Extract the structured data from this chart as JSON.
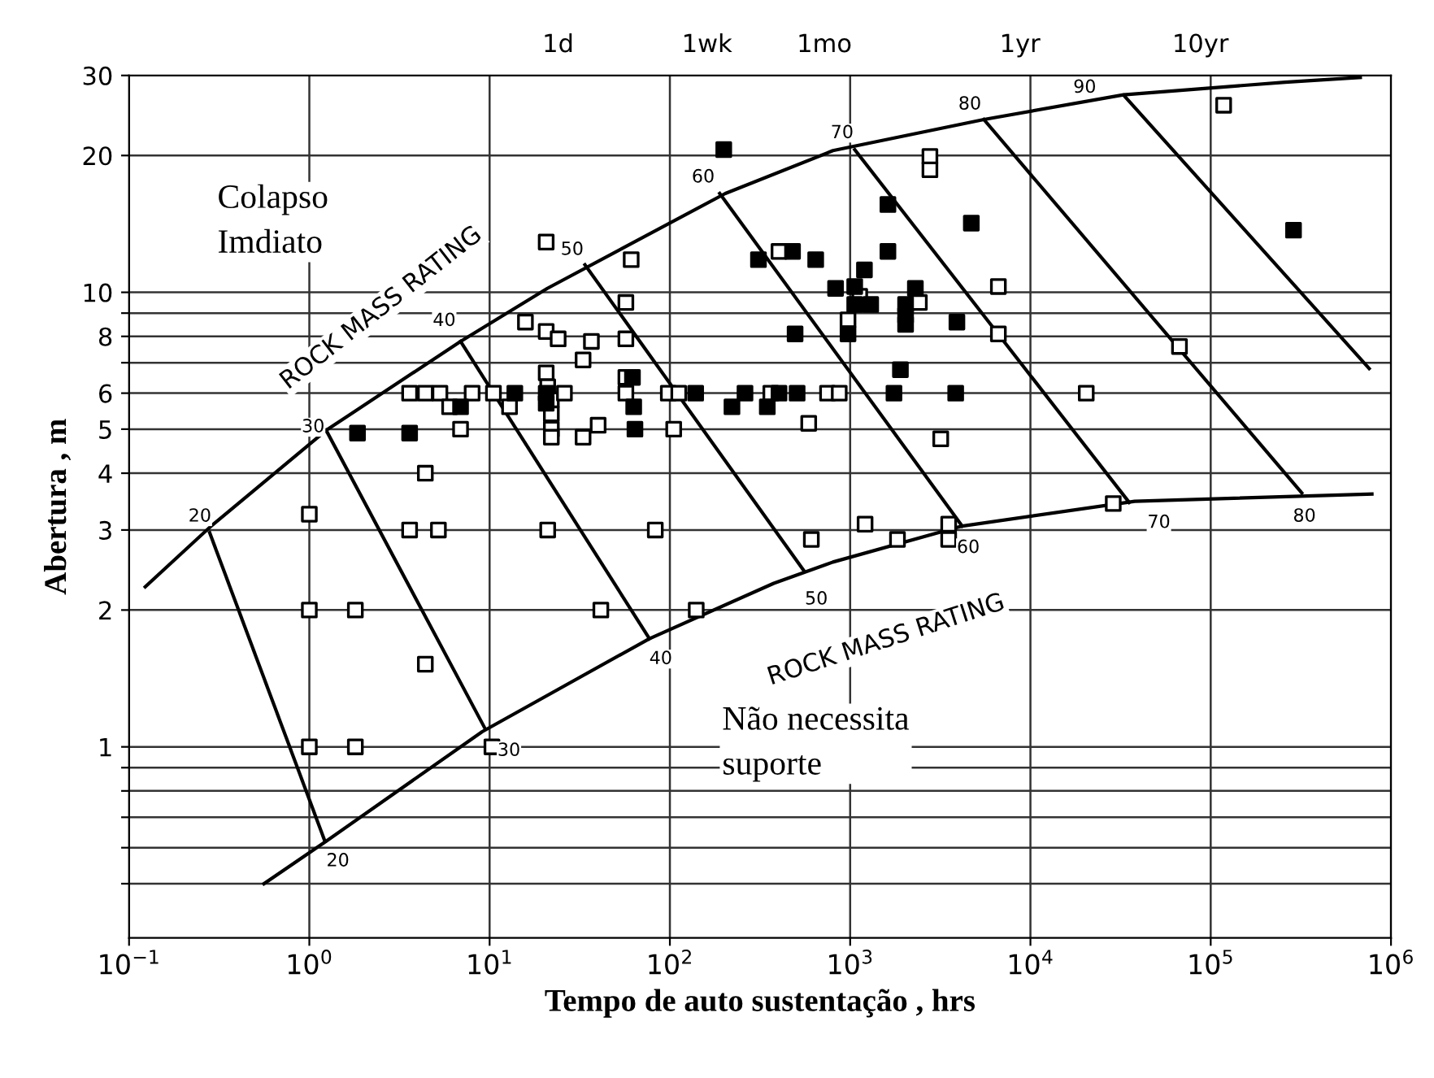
{
  "chart_data": {
    "type": "scatter",
    "xlabel": "Tempo de auto sustentação , hrs",
    "ylabel": "Abertura , m",
    "log": "xy",
    "grid": true,
    "legend": false,
    "xlim": [
      0.1,
      1000000
    ],
    "ylim": [
      0.38,
      30
    ],
    "xticks": [
      {
        "value": 0.1,
        "label": "10$^{−1}$"
      },
      {
        "value": 1,
        "label": "10$^{0}$"
      },
      {
        "value": 10,
        "label": "10$^{1}$"
      },
      {
        "value": 100,
        "label": "10$^{2}$"
      },
      {
        "value": 1000,
        "label": "10$^{3}$"
      },
      {
        "value": 10000,
        "label": "10$^{4}$"
      },
      {
        "value": 100000,
        "label": "10$^{5}$"
      },
      {
        "value": 1000000,
        "label": "10$^{6}$"
      }
    ],
    "yticks": [
      {
        "value": 0.5,
        "label": null
      },
      {
        "value": 0.6,
        "label": null
      },
      {
        "value": 0.7,
        "label": null
      },
      {
        "value": 0.8,
        "label": null
      },
      {
        "value": 0.9,
        "label": null
      },
      1,
      2,
      3,
      4,
      5,
      6,
      {
        "value": 7,
        "label": null
      },
      8,
      {
        "value": 9,
        "label": null
      },
      10,
      20,
      30
    ],
    "tick_labels": "xy",
    "series": [
      {
        "type": "line",
        "color": "#000000",
        "marker": "none",
        "line_style": "solid",
        "x": [
          0.123,
          0.28,
          1.24,
          6.9,
          20.9,
          203,
          802,
          5520,
          32800,
          259000,
          676000
        ],
        "values": [
          2.25,
          3.04,
          4.97,
          7.8,
          10.2,
          16.5,
          20.5,
          24.0,
          27.2,
          29,
          29.7
        ]
      },
      {
        "type": "line",
        "color": "#000000",
        "marker": "none",
        "line_style": "solid",
        "x": [
          0.56,
          1.24,
          9.1,
          77,
          377,
          802,
          4180,
          37900,
          784000
        ],
        "values": [
          0.5,
          0.62,
          1.08,
          1.73,
          2.29,
          2.55,
          3.06,
          3.47,
          3.6
        ]
      },
      {
        "type": "line",
        "color": "#000000",
        "marker": "none",
        "line_style": "solid",
        "x": [
          0.28,
          1.22
        ],
        "values": [
          2.96,
          0.62
        ]
      },
      {
        "type": "line",
        "color": "#000000",
        "marker": "none",
        "line_style": "solid",
        "x": [
          1.24,
          9.4
        ],
        "values": [
          4.97,
          1.1
        ]
      },
      {
        "type": "line",
        "color": "#000000",
        "marker": "none",
        "line_style": "solid",
        "x": [
          6.9,
          77
        ],
        "values": [
          7.8,
          1.73
        ]
      },
      {
        "type": "line",
        "color": "#000000",
        "marker": "none",
        "line_style": "solid",
        "x": [
          33.8,
          550
        ],
        "values": [
          11.5,
          2.45
        ]
      },
      {
        "type": "line",
        "color": "#000000",
        "marker": "none",
        "line_style": "solid",
        "x": [
          189,
          4180
        ],
        "values": [
          16.5,
          3.06
        ]
      },
      {
        "type": "line",
        "color": "#000000",
        "marker": "none",
        "line_style": "solid",
        "x": [
          1060,
          35300
        ],
        "values": [
          20.6,
          3.45
        ]
      },
      {
        "type": "line",
        "color": "#000000",
        "marker": "none",
        "line_style": "solid",
        "x": [
          5520,
          320000
        ],
        "values": [
          24,
          3.62
        ]
      },
      {
        "type": "line",
        "color": "#000000",
        "marker": "none",
        "line_style": "solid",
        "x": [
          33000,
          757000
        ],
        "values": [
          27.1,
          6.8
        ]
      },
      {
        "color": "#ffffff",
        "marker": "square",
        "x": [
          20.6,
          61,
          57,
          15.8,
          20.6,
          24,
          36.7,
          57,
          33,
          20.6,
          3.6,
          4.4,
          5.3,
          8.0,
          10.5,
          6.0,
          12.9,
          6.9,
          21,
          22,
          22,
          22,
          22,
          26,
          33,
          40,
          57,
          57,
          105,
          98,
          112,
          4.4,
          363,
          1.0,
          3.6,
          5.2,
          21,
          83,
          1.0,
          1.8,
          41.4,
          140,
          4.4,
          1.0,
          1.8,
          10.3,
          2770,
          2770,
          118000,
          403,
          1130,
          2420,
          973,
          6640,
          6640,
          67100,
          749,
          870,
          20400,
          589,
          3180,
          609,
          1210,
          1830,
          3520,
          3520,
          28800
        ],
        "values": [
          12.9,
          11.8,
          9.5,
          8.6,
          8.2,
          7.9,
          7.8,
          7.9,
          7.1,
          6.65,
          6,
          6,
          6,
          6,
          6,
          5.6,
          5.6,
          5.0,
          6.2,
          5.8,
          5.4,
          5.0,
          4.8,
          6.0,
          4.8,
          5.1,
          6.5,
          6.0,
          5.0,
          6,
          6,
          4.0,
          6,
          3.25,
          3,
          3,
          3,
          3,
          2,
          2,
          2,
          2,
          1.52,
          1,
          1,
          1,
          19.9,
          18.6,
          25.8,
          12.3,
          9.8,
          9.5,
          8.7,
          10.3,
          8.1,
          7.6,
          6,
          6,
          6,
          5.15,
          4.76,
          2.86,
          3.09,
          2.86,
          3.09,
          2.86,
          3.43
        ]
      },
      {
        "color": "#000000",
        "marker": "square",
        "x": [
          199,
          1620,
          4700,
          288000,
          479,
          310,
          644,
          1620,
          1200,
          830,
          1060,
          1300,
          1060,
          2300,
          2030,
          2030,
          2030,
          973,
          495,
          3910,
          1900,
          403,
          508,
          1750,
          3850,
          347,
          1.85,
          3.6,
          6.9,
          13.8,
          20.6,
          20.6,
          62,
          63,
          64,
          139,
          221,
          261
        ],
        "values": [
          20.6,
          15.6,
          14.2,
          13.7,
          12.3,
          11.8,
          11.8,
          12.3,
          11.2,
          10.2,
          10.3,
          9.4,
          9.4,
          10.2,
          9.4,
          8.9,
          8.5,
          8.1,
          8.1,
          8.6,
          6.76,
          6,
          6,
          6,
          6,
          5.6,
          4.9,
          4.9,
          5.6,
          6,
          5.7,
          6,
          6.5,
          5.6,
          5.0,
          6,
          5.6,
          6
        ]
      }
    ],
    "annotations": [
      "Colapso\nImdiato",
      "Não necessita\nsuporte",
      "ROCK MASS RATING",
      "ROCK MASS RATING",
      {
        "text": "20",
        "x": 0.247,
        "y": 3.21
      },
      {
        "text": "30",
        "x": 1.05,
        "y": 5.05
      },
      {
        "text": "40",
        "x": 5.6,
        "y": 8.65
      },
      {
        "text": "50",
        "x": 28.7,
        "y": 12.4
      },
      {
        "text": "60",
        "x": 153,
        "y": 17.9
      },
      {
        "text": "70",
        "x": 902,
        "y": 22.4
      },
      {
        "text": "80",
        "x": 4610,
        "y": 25.9
      },
      {
        "text": "90",
        "x": 20000,
        "y": 28.2
      },
      {
        "text": "20",
        "x": 1.44,
        "y": 0.56
      },
      {
        "text": "30",
        "x": 12.8,
        "y": 0.98
      },
      {
        "text": "40",
        "x": 89,
        "y": 1.56
      },
      {
        "text": "50",
        "x": 649,
        "y": 2.11
      },
      {
        "text": "60",
        "x": 4520,
        "y": 2.74
      },
      {
        "text": "70",
        "x": 51600,
        "y": 3.11
      },
      {
        "text": "80",
        "x": 331000,
        "y": 3.21
      },
      "1d",
      "1wk",
      "1mo",
      "1yr",
      "10yr"
    ]
  }
}
